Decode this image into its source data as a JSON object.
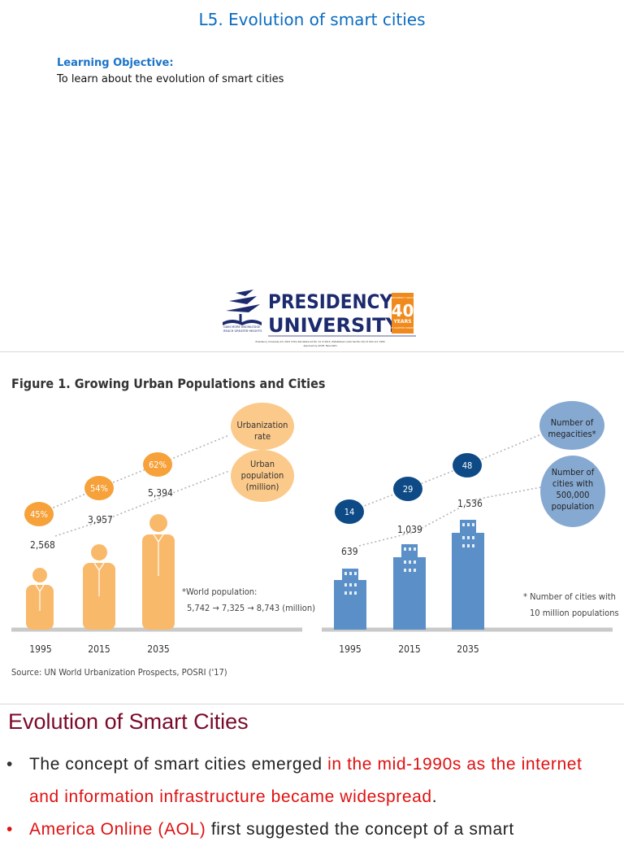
{
  "lesson_title": "L5. Evolution of smart cities",
  "learning_objective": {
    "label": "Learning Objective:",
    "text": "To learn about the evolution of smart cities"
  },
  "logo": {
    "name_top": "PRESIDENCY",
    "name_bottom": "UNIVERSITY",
    "motto_1": "GAIN MORE KNOWLEDGE",
    "motto_2": "REACH GREATER HEIGHTS",
    "badge_top": "PRESIDENCY GROUP",
    "badge_num": "40",
    "badge_years": "YEARS",
    "badge_sub": "OF ACADEMIC WISDOM",
    "fine_print_1": "Presidency University Act, 2013 of the Karnataka Act No. 41 of 2013 | Established under Section 2(f) of UGC Act, 1956",
    "fine_print_2": "Approved by AICTE, New Delhi",
    "colors": {
      "navy": "#1c2a6e",
      "orange": "#f08a1c"
    }
  },
  "figure": {
    "title": "Figure 1. Growing Urban Populations and Cities",
    "source": "Source: UN World Urbanization Prospects, POSRI ('17)",
    "left_panel": {
      "years": [
        "1995",
        "2015",
        "2035"
      ],
      "urbanization_rate": [
        "45%",
        "54%",
        "62%"
      ],
      "urban_population": [
        "2,568",
        "3,957",
        "5,394"
      ],
      "legend_rate": [
        "Urbanization",
        "rate"
      ],
      "legend_population": [
        "Urban",
        "population",
        "(million)"
      ],
      "note_1": "*World population:",
      "note_2": "5,742 → 7,325 → 8,743 (million)",
      "colors": {
        "bar": "#f9b96a",
        "circle": "#f6a13a",
        "legend": "#fbc98a"
      }
    },
    "right_panel": {
      "years": [
        "1995",
        "2015",
        "2035"
      ],
      "megacities": [
        "14",
        "29",
        "48"
      ],
      "cities_500k": [
        "639",
        "1,039",
        "1,536"
      ],
      "legend_megacities": [
        "Number of",
        "megacities*"
      ],
      "legend_cities": [
        "Number of",
        "cities with",
        "500,000",
        "population"
      ],
      "note_1": "* Number of cities with",
      "note_2": "10 million populations",
      "colors": {
        "bar": "#5a8fc8",
        "circle": "#0d4a86",
        "legend": "#86a9d2"
      }
    }
  },
  "section_title": "Evolution of Smart Cities",
  "bullets": {
    "b1_plain": "The concept of smart cities emerged ",
    "b1_highlight": "in the mid-1990s as the internet and information infrastructure became widespread",
    "b1_end": ".",
    "b2_highlight": "America Online (AOL)",
    "b2_plain": " first suggested the concept of a smart"
  }
}
